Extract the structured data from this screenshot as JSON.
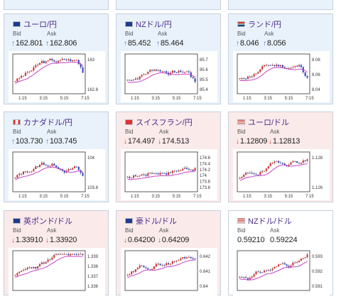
{
  "bid_label": "Bid",
  "ask_label": "Ask",
  "cards": [
    {
      "id": "usdjpy-top",
      "pair": "",
      "state": "up",
      "bid": "",
      "ask": "",
      "bid_dir": "",
      "ask_dir": ""
    },
    {
      "id": "mid-top",
      "pair": "",
      "state": "up",
      "bid": "",
      "ask": "",
      "bid_dir": "",
      "ask_dir": ""
    },
    {
      "id": "right-top",
      "pair": "",
      "state": "up",
      "bid": "",
      "ask": "",
      "bid_dir": "",
      "ask_dir": ""
    },
    {
      "id": "eurjpy",
      "pair": "ユーロ/円",
      "state": "up",
      "flag": "eu",
      "bid": "162.801",
      "ask": "162.806",
      "bid_dir": "up",
      "ask_dir": "up",
      "chart": {
        "type": "candlestick",
        "x_labels": [
          "1:15",
          "3:15",
          "5:15",
          "7:15"
        ],
        "y_labels": [
          "163",
          "162.8"
        ],
        "seed": 3,
        "trend": "up-then-drop"
      }
    },
    {
      "id": "nzdjpy",
      "pair": "NZドル/円",
      "state": "up",
      "flag": "nz",
      "bid": "85.452",
      "ask": "85.464",
      "bid_dir": "up",
      "ask_dir": "up",
      "chart": {
        "type": "candlestick",
        "x_labels": [
          "1:15",
          "3:15",
          "5:15",
          "7:15"
        ],
        "y_labels": [
          "85.7",
          "85.6",
          "85.5",
          "85.4"
        ],
        "seed": 7,
        "trend": "up-then-drop"
      }
    },
    {
      "id": "zarjpy",
      "pair": "ランド/円",
      "state": "up",
      "flag": "za",
      "bid": "8.046",
      "ask": "8.056",
      "bid_dir": "up",
      "ask_dir": "up",
      "chart": {
        "type": "candlestick",
        "x_labels": [
          "1:15",
          "3:15",
          "5:15",
          "7:15"
        ],
        "y_labels": [
          "8.08",
          "8.06",
          "8.04"
        ],
        "seed": 11,
        "trend": "up-then-drop"
      }
    },
    {
      "id": "cadjpy",
      "pair": "カナダドル/円",
      "state": "up",
      "flag": "ca",
      "bid": "103.730",
      "ask": "103.745",
      "bid_dir": "up",
      "ask_dir": "up",
      "chart": {
        "type": "candlestick",
        "x_labels": [
          "1:15",
          "3:15",
          "5:15",
          "7:15"
        ],
        "y_labels": [
          "104",
          "103.8"
        ],
        "seed": 13,
        "trend": "up-then-drop"
      }
    },
    {
      "id": "chfjpy",
      "pair": "スイスフラン/円",
      "state": "down",
      "flag": "ch",
      "bid": "174.497",
      "ask": "174.513",
      "bid_dir": "down",
      "ask_dir": "down",
      "chart": {
        "type": "candlestick",
        "x_labels": [
          "1:15",
          "3:15",
          "5:15",
          "7:15"
        ],
        "y_labels": [
          "174.6",
          "174.4",
          "174.2",
          "174",
          "173.8",
          "173.6"
        ],
        "seed": 17,
        "trend": "up"
      }
    },
    {
      "id": "eurusd",
      "pair": "ユーロ/ドル",
      "state": "down",
      "flag": "us",
      "bid": "1.12809",
      "ask": "1.12813",
      "bid_dir": "down",
      "ask_dir": "down",
      "chart": {
        "type": "candlestick",
        "x_labels": [
          "1:15",
          "3:15",
          "5:15",
          "7:15"
        ],
        "y_labels": [
          "1.128",
          "1.126"
        ],
        "seed": 19,
        "trend": "up"
      }
    },
    {
      "id": "gbpusd",
      "pair": "英ポンド/ドル",
      "state": "down",
      "flag": "gb",
      "bid": "1.33910",
      "ask": "1.33920",
      "bid_dir": "down",
      "ask_dir": "down",
      "chart": {
        "type": "candlestick",
        "x_labels": [],
        "y_labels": [
          "1.339",
          "1.338",
          "1.337",
          "1.336"
        ],
        "seed": 23,
        "trend": "up"
      }
    },
    {
      "id": "audusd",
      "pair": "豪ドル/ドル",
      "state": "down",
      "flag": "au",
      "bid": "0.64200",
      "ask": "0.64209",
      "bid_dir": "down",
      "ask_dir": "down",
      "chart": {
        "type": "candlestick",
        "x_labels": [],
        "y_labels": [
          "0.642",
          "0.641",
          "0.64"
        ],
        "seed": 29,
        "trend": "up"
      }
    },
    {
      "id": "nzdusd",
      "pair": "NZドル/ドル",
      "state": "neutral",
      "flag": "us",
      "bid": "0.59210",
      "ask": "0.59224",
      "bid_dir": "",
      "ask_dir": "",
      "chart": {
        "type": "candlestick",
        "x_labels": [],
        "y_labels": [
          "0.593",
          "0.592",
          "0.591"
        ],
        "seed": 31,
        "trend": "up"
      }
    }
  ]
}
